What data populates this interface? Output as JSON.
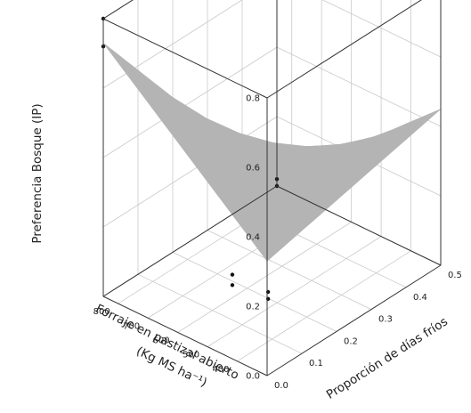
{
  "chart_data": {
    "type": "surface3d",
    "x_axis": {
      "label": "Forraje en pastizal abierto",
      "label_units": "(Kg MS ha⁻¹)",
      "ticks": [
        "400",
        "500",
        "600",
        "700",
        "800"
      ],
      "range": [
        300,
        850
      ]
    },
    "y_axis": {
      "label": "Proporción de días fríos",
      "ticks": [
        "0.0",
        "0.1",
        "0.2",
        "0.3",
        "0.4",
        "0.5"
      ],
      "range": [
        0,
        0.5
      ]
    },
    "z_axis": {
      "label": "Preferencia Bosque (IP)",
      "ticks": [
        "0.0",
        "0.2",
        "0.4",
        "0.6",
        "0.8"
      ],
      "range": [
        0,
        0.8
      ]
    },
    "surface": {
      "color": "#b4b4b4",
      "edge_color": "#9a9a9a",
      "corners": [
        {
          "forage": 300,
          "cold": 0.0,
          "preference": 0.33
        },
        {
          "forage": 850,
          "cold": 0.0,
          "preference": 0.73
        },
        {
          "forage": 850,
          "cold": 0.5,
          "preference": 0.02
        },
        {
          "forage": 300,
          "cold": 0.5,
          "preference": 0.45
        }
      ]
    },
    "points": [
      {
        "forage": 320,
        "cold": 0.02,
        "preference": 0.22
      },
      {
        "forage": 320,
        "cold": 0.02,
        "preference": 0.2
      },
      {
        "forage": 440,
        "cold": 0.02,
        "preference": 0.22
      },
      {
        "forage": 440,
        "cold": 0.02,
        "preference": 0.19
      },
      {
        "forage": 850,
        "cold": 0.0,
        "preference": 0.8
      },
      {
        "forage": 850,
        "cold": 0.0,
        "preference": 0.72
      },
      {
        "forage": 850,
        "cold": 0.5,
        "preference": 0.02
      },
      {
        "forage": 850,
        "cold": 0.5,
        "preference": 0.0
      }
    ],
    "grid": true
  }
}
